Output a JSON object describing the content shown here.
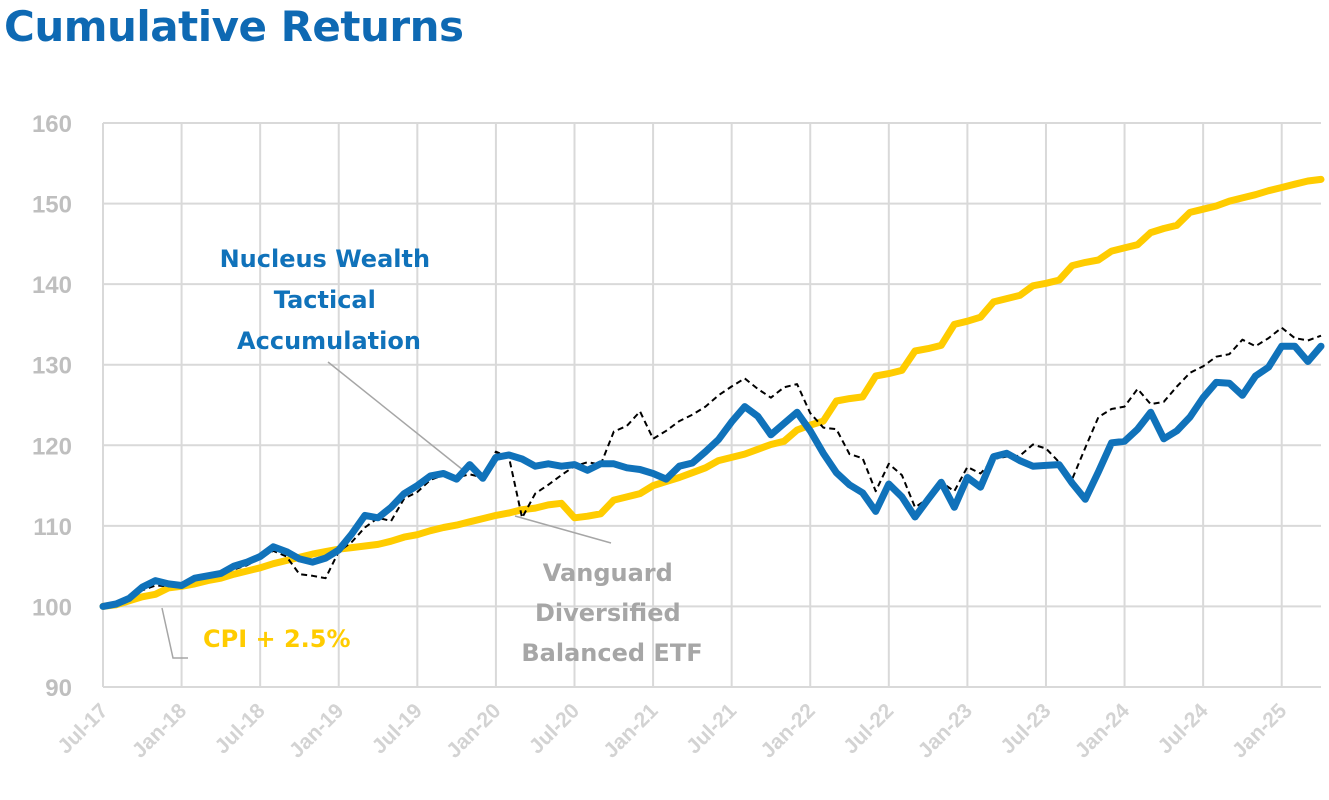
{
  "title": "Cumulative Returns",
  "colors": {
    "nucleus": "#1072BA",
    "vanguard": "#000000",
    "cpi": "#FFCC00",
    "title": "#0E69B3",
    "grid": "#D9D9D9",
    "annotation_gray": "#A6A6A6"
  },
  "chart_data": {
    "type": "line",
    "title": "Cumulative Returns",
    "xlabel": "",
    "ylabel": "",
    "ylim": [
      90,
      160
    ],
    "yticks": [
      90,
      100,
      110,
      120,
      130,
      140,
      150,
      160
    ],
    "xticks": [
      "Jul-17",
      "Jan-18",
      "Jul-18",
      "Jan-19",
      "Jul-19",
      "Jan-20",
      "Jul-20",
      "Jan-21",
      "Jul-21",
      "Jan-22",
      "Jul-22",
      "Jan-23",
      "Jul-23",
      "Jan-24",
      "Jul-24",
      "Jan-25"
    ],
    "grid": true,
    "legend": "none (inline annotations)",
    "annotations": {
      "nucleus": [
        "Nucleus Wealth",
        "Tactical",
        "Accumulation"
      ],
      "vanguard": [
        "Vanguard",
        "Diversified",
        "Balanced ETF"
      ],
      "cpi": [
        "CPI + 2.5%"
      ]
    },
    "series": [
      {
        "name": "Nucleus Wealth Tactical Accumulation",
        "style": "solid-thick",
        "color": "#1072BA",
        "points": [
          [
            0,
            100
          ],
          [
            1,
            100.3
          ],
          [
            2,
            101
          ],
          [
            3,
            102.4
          ],
          [
            4,
            103.2
          ],
          [
            5,
            102.8
          ],
          [
            6,
            102.6
          ],
          [
            7,
            103.5
          ],
          [
            8,
            103.8
          ],
          [
            9,
            104.1
          ],
          [
            10,
            105
          ],
          [
            11,
            105.5
          ],
          [
            12,
            106.2
          ],
          [
            13,
            107.4
          ],
          [
            14,
            106.8
          ],
          [
            15,
            105.9
          ],
          [
            16,
            105.5
          ],
          [
            17,
            106
          ],
          [
            18,
            107
          ],
          [
            19,
            109
          ],
          [
            20,
            111.3
          ],
          [
            21,
            111
          ],
          [
            22,
            112.3
          ],
          [
            23,
            114
          ],
          [
            24,
            115
          ],
          [
            25,
            116.2
          ],
          [
            26,
            116.5
          ],
          [
            27,
            115.8
          ],
          [
            28,
            117.6
          ],
          [
            29,
            115.9
          ],
          [
            30,
            118.5
          ],
          [
            31,
            118.8
          ],
          [
            32,
            118.3
          ],
          [
            33,
            117.4
          ],
          [
            34,
            117.7
          ],
          [
            35,
            117.4
          ],
          [
            36,
            117.6
          ],
          [
            37,
            116.9
          ],
          [
            38,
            117.7
          ],
          [
            39,
            117.7
          ],
          [
            40,
            117.2
          ],
          [
            41,
            117
          ],
          [
            42,
            116.5
          ],
          [
            43,
            115.8
          ],
          [
            44,
            117.4
          ],
          [
            45,
            117.8
          ],
          [
            46,
            119.2
          ],
          [
            47,
            120.7
          ],
          [
            48,
            122.9
          ],
          [
            49,
            124.8
          ],
          [
            50,
            123.6
          ],
          [
            51,
            121.3
          ],
          [
            52,
            122.7
          ],
          [
            53,
            124.1
          ],
          [
            54,
            121.8
          ],
          [
            55,
            119
          ],
          [
            56,
            116.6
          ],
          [
            57,
            115.1
          ],
          [
            58,
            114.1
          ],
          [
            59,
            111.8
          ],
          [
            60,
            115.2
          ],
          [
            61,
            113.6
          ],
          [
            62,
            111.1
          ],
          [
            63,
            113.3
          ],
          [
            64,
            115.4
          ],
          [
            65,
            112.3
          ],
          [
            66,
            116
          ],
          [
            67,
            114.8
          ],
          [
            68,
            118.6
          ],
          [
            69,
            119
          ],
          [
            70,
            118.1
          ],
          [
            71,
            117.4
          ],
          [
            72,
            117.5
          ],
          [
            73,
            117.6
          ],
          [
            74,
            115.3
          ],
          [
            75,
            113.3
          ],
          [
            76,
            116.7
          ],
          [
            77,
            120.3
          ],
          [
            78,
            120.5
          ],
          [
            79,
            122
          ],
          [
            80,
            124.1
          ],
          [
            81,
            120.8
          ],
          [
            82,
            121.8
          ],
          [
            83,
            123.5
          ],
          [
            84,
            125.9
          ],
          [
            85,
            127.8
          ],
          [
            86,
            127.7
          ],
          [
            87,
            126.2
          ],
          [
            88,
            128.6
          ],
          [
            89,
            129.7
          ],
          [
            90,
            132.3
          ],
          [
            91,
            132.3
          ],
          [
            92,
            130.4
          ],
          [
            93,
            132.3
          ]
        ]
      },
      {
        "name": "Vanguard Diversified Balanced ETF",
        "style": "dashed",
        "color": "#000000",
        "points": [
          [
            0,
            100
          ],
          [
            1,
            100.2
          ],
          [
            2,
            101
          ],
          [
            3,
            102
          ],
          [
            4,
            102.6
          ],
          [
            5,
            102.5
          ],
          [
            6,
            102.8
          ],
          [
            7,
            103.5
          ],
          [
            8,
            103.7
          ],
          [
            9,
            104
          ],
          [
            10,
            104.6
          ],
          [
            11,
            105.1
          ],
          [
            12,
            106
          ],
          [
            13,
            106.9
          ],
          [
            14,
            106.2
          ],
          [
            15,
            104
          ],
          [
            16,
            103.8
          ],
          [
            17,
            103.5
          ],
          [
            18,
            106.8
          ],
          [
            19,
            108
          ],
          [
            20,
            109.8
          ],
          [
            21,
            111
          ],
          [
            22,
            110.6
          ],
          [
            23,
            113.4
          ],
          [
            24,
            114.2
          ],
          [
            25,
            115.7
          ],
          [
            26,
            116.3
          ],
          [
            27,
            116
          ],
          [
            28,
            116.4
          ],
          [
            29,
            116
          ],
          [
            30,
            119.2
          ],
          [
            31,
            118.5
          ],
          [
            32,
            111
          ],
          [
            33,
            114
          ],
          [
            34,
            115.1
          ],
          [
            35,
            116.3
          ],
          [
            36,
            117.4
          ],
          [
            37,
            117.9
          ],
          [
            38,
            117.6
          ],
          [
            39,
            121.7
          ],
          [
            40,
            122.4
          ],
          [
            41,
            124.2
          ],
          [
            42,
            120.8
          ],
          [
            43,
            121.8
          ],
          [
            44,
            123
          ],
          [
            45,
            123.8
          ],
          [
            46,
            124.8
          ],
          [
            47,
            126.2
          ],
          [
            48,
            127.3
          ],
          [
            49,
            128.3
          ],
          [
            50,
            127
          ],
          [
            51,
            125.9
          ],
          [
            52,
            127.2
          ],
          [
            53,
            127.6
          ],
          [
            54,
            124
          ],
          [
            55,
            122.2
          ],
          [
            56,
            122
          ],
          [
            57,
            118.9
          ],
          [
            58,
            118.4
          ],
          [
            59,
            114.3
          ],
          [
            60,
            117.7
          ],
          [
            61,
            116.3
          ],
          [
            62,
            112.3
          ],
          [
            63,
            113.4
          ],
          [
            64,
            115.4
          ],
          [
            65,
            114.3
          ],
          [
            66,
            117.3
          ],
          [
            67,
            116.5
          ],
          [
            68,
            118.3
          ],
          [
            69,
            118.6
          ],
          [
            70,
            118.7
          ],
          [
            71,
            120.1
          ],
          [
            72,
            119.6
          ],
          [
            73,
            117.9
          ],
          [
            74,
            115.8
          ],
          [
            75,
            119.7
          ],
          [
            76,
            123.5
          ],
          [
            77,
            124.5
          ],
          [
            78,
            124.8
          ],
          [
            79,
            127
          ],
          [
            80,
            125.1
          ],
          [
            81,
            125.4
          ],
          [
            82,
            127.3
          ],
          [
            83,
            129
          ],
          [
            84,
            129.8
          ],
          [
            85,
            131
          ],
          [
            86,
            131.3
          ],
          [
            87,
            133.1
          ],
          [
            88,
            132.3
          ],
          [
            89,
            133.3
          ],
          [
            90,
            134.6
          ],
          [
            91,
            133.3
          ],
          [
            92,
            133
          ],
          [
            93,
            133.6
          ]
        ]
      },
      {
        "name": "CPI + 2.5%",
        "style": "solid-thick",
        "color": "#FFCC00",
        "points": [
          [
            0,
            100
          ],
          [
            1,
            100.2
          ],
          [
            2,
            100.7
          ],
          [
            3,
            101.2
          ],
          [
            4,
            101.5
          ],
          [
            5,
            102.3
          ],
          [
            6,
            102.5
          ],
          [
            7,
            102.8
          ],
          [
            8,
            103.2
          ],
          [
            9,
            103.5
          ],
          [
            10,
            104
          ],
          [
            11,
            104.4
          ],
          [
            12,
            104.8
          ],
          [
            13,
            105.3
          ],
          [
            14,
            105.7
          ],
          [
            15,
            106.1
          ],
          [
            16,
            106.5
          ],
          [
            17,
            106.8
          ],
          [
            18,
            107.1
          ],
          [
            19,
            107.3
          ],
          [
            20,
            107.5
          ],
          [
            21,
            107.7
          ],
          [
            22,
            108.1
          ],
          [
            23,
            108.6
          ],
          [
            24,
            108.9
          ],
          [
            25,
            109.4
          ],
          [
            26,
            109.8
          ],
          [
            27,
            110.1
          ],
          [
            28,
            110.5
          ],
          [
            29,
            110.9
          ],
          [
            30,
            111.3
          ],
          [
            31,
            111.6
          ],
          [
            32,
            112
          ],
          [
            33,
            112.2
          ],
          [
            34,
            112.6
          ],
          [
            35,
            112.8
          ],
          [
            36,
            111
          ],
          [
            37,
            111.2
          ],
          [
            38,
            111.5
          ],
          [
            39,
            113.2
          ],
          [
            40,
            113.6
          ],
          [
            41,
            114
          ],
          [
            42,
            115
          ],
          [
            43,
            115.5
          ],
          [
            44,
            116
          ],
          [
            45,
            116.6
          ],
          [
            46,
            117.2
          ],
          [
            47,
            118.1
          ],
          [
            48,
            118.5
          ],
          [
            49,
            118.9
          ],
          [
            50,
            119.5
          ],
          [
            51,
            120.1
          ],
          [
            52,
            120.5
          ],
          [
            53,
            121.9
          ],
          [
            54,
            122.5
          ],
          [
            55,
            123
          ],
          [
            56,
            125.5
          ],
          [
            57,
            125.8
          ],
          [
            58,
            126
          ],
          [
            59,
            128.6
          ],
          [
            60,
            128.9
          ],
          [
            61,
            129.3
          ],
          [
            62,
            131.7
          ],
          [
            63,
            132
          ],
          [
            64,
            132.4
          ],
          [
            65,
            135
          ],
          [
            66,
            135.4
          ],
          [
            67,
            135.9
          ],
          [
            68,
            137.8
          ],
          [
            69,
            138.2
          ],
          [
            70,
            138.6
          ],
          [
            71,
            139.8
          ],
          [
            72,
            140.1
          ],
          [
            73,
            140.5
          ],
          [
            74,
            142.3
          ],
          [
            75,
            142.7
          ],
          [
            76,
            143
          ],
          [
            77,
            144.1
          ],
          [
            78,
            144.5
          ],
          [
            79,
            144.9
          ],
          [
            80,
            146.4
          ],
          [
            81,
            146.9
          ],
          [
            82,
            147.3
          ],
          [
            83,
            148.9
          ],
          [
            84,
            149.3
          ],
          [
            85,
            149.7
          ],
          [
            86,
            150.3
          ],
          [
            87,
            150.7
          ],
          [
            88,
            151.1
          ],
          [
            89,
            151.6
          ],
          [
            90,
            152
          ],
          [
            91,
            152.4
          ],
          [
            92,
            152.8
          ],
          [
            93,
            153
          ]
        ]
      }
    ]
  }
}
